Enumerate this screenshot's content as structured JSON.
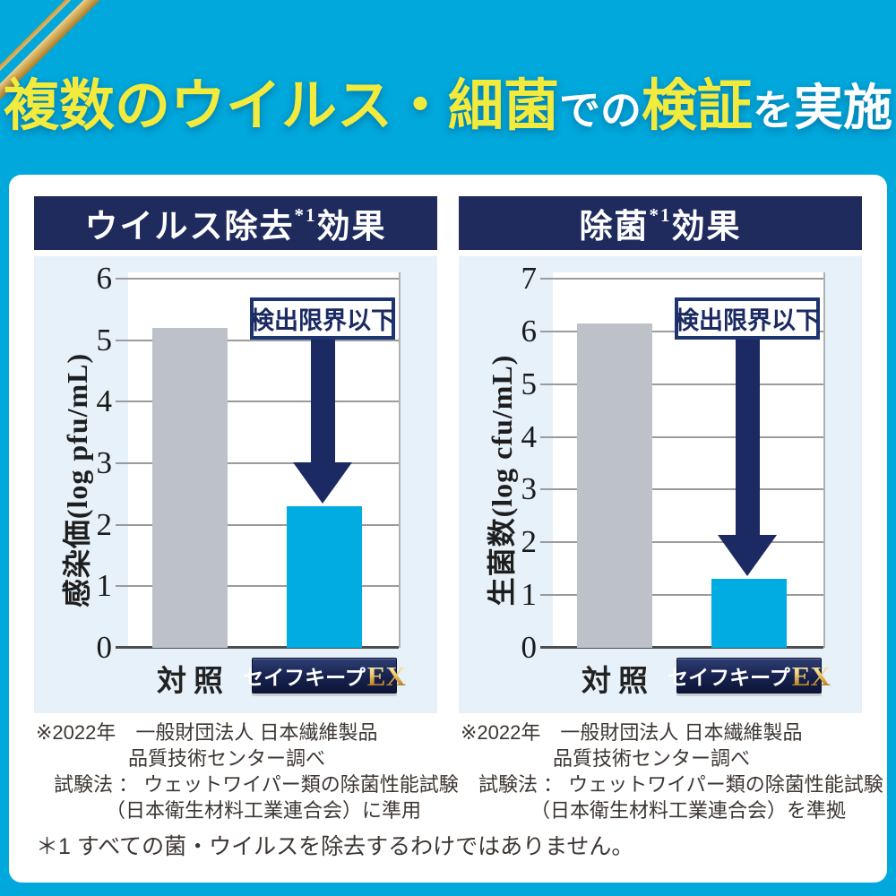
{
  "title": {
    "segments": [
      {
        "text": "複数のウイルス・細菌",
        "color": "yellow",
        "size": "lg"
      },
      {
        "text": "での",
        "color": "white",
        "size": "md"
      },
      {
        "text": "検証",
        "color": "yellow",
        "size": "lg"
      },
      {
        "text": "を",
        "color": "white",
        "size": "md"
      },
      {
        "text": "実施",
        "color": "white",
        "size": "lg2"
      }
    ]
  },
  "panels": [
    {
      "header": {
        "main": "ウイルス除去",
        "sup": "*1",
        "tail": "効果"
      },
      "badge": {
        "main": "セイフキープ",
        "ex": "EX"
      },
      "footnote": [
        "※2022年　一般財団法人 日本繊維製品",
        "品質技術センター調べ",
        "試験法 ： ウェットワイパー類の除菌性能試験",
        "（日本衛生材料工業連合会）に準用"
      ]
    },
    {
      "header": {
        "main": "除菌",
        "sup": "*1",
        "tail": "効果"
      },
      "badge": {
        "main": "セイフキープ",
        "ex": "EX"
      },
      "footnote": [
        "※2022年　一般財団法人 日本繊維製品",
        "品質技術センター調べ",
        "試験法 ： ウェットワイパー類の除菌性能試験",
        "（日本衛生材料工業連合会）を準拠"
      ]
    }
  ],
  "chart_data": [
    {
      "type": "bar",
      "title": "ウイルス除去*1効果",
      "categories": [
        "対照",
        "セイフキープEX"
      ],
      "values": [
        5.2,
        2.3
      ],
      "ylabel": "感染価(log pfu/mL)",
      "ylim": [
        0,
        6
      ],
      "ytick_step": 1,
      "grid": true,
      "annotation": "検出限界以下",
      "bar_colors": [
        "#bcc2c8",
        "#00ace1"
      ]
    },
    {
      "type": "bar",
      "title": "除菌*1効果",
      "categories": [
        "対照",
        "セイフキープEX"
      ],
      "values": [
        6.15,
        1.3
      ],
      "ylabel": "生菌数(log cfu/mL)",
      "ylim": [
        0,
        7
      ],
      "ytick_step": 1,
      "grid": true,
      "annotation": "検出限界以下",
      "bar_colors": [
        "#bcc2c8",
        "#00ace1"
      ]
    }
  ],
  "bottom_note": "＊1 すべての菌・ウイルスを除去するわけではありません。",
  "colors": {
    "background": "#00a8db",
    "navy_band": "#1f2b5d",
    "arrow_navy": "#1b2a62",
    "panel_bg": "#e7f1f9",
    "bar_control": "#bcc2c8",
    "bar_product": "#00ace1",
    "title_yellow": "#f2ea3d",
    "ribbon_gold": "#cda350"
  }
}
